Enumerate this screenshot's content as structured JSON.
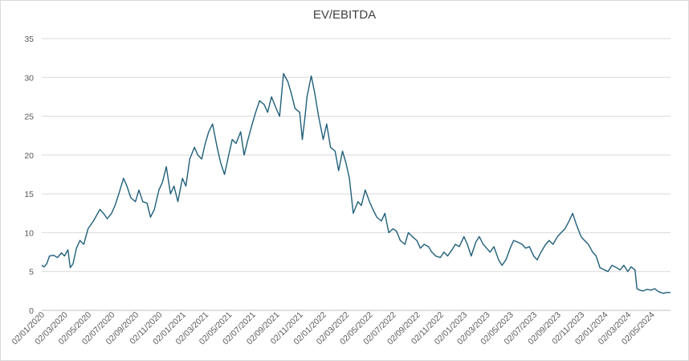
{
  "chart_data": {
    "type": "line",
    "title": "EV/EBITDA",
    "xlabel": "",
    "ylabel": "",
    "ylim": [
      0,
      35
    ],
    "y_ticks": [
      0,
      5,
      10,
      15,
      20,
      25,
      30,
      35
    ],
    "x_range": [
      "2020-01-02",
      "2024-06-20"
    ],
    "x_ticks": [
      "02/01/2020",
      "02/03/2020",
      "02/05/2020",
      "02/07/2020",
      "02/09/2020",
      "02/11/2020",
      "02/01/2021",
      "02/03/2021",
      "02/05/2021",
      "02/07/2021",
      "02/09/2021",
      "02/11/2021",
      "02/01/2022",
      "02/03/2022",
      "02/05/2022",
      "02/07/2022",
      "02/09/2022",
      "02/11/2022",
      "02/01/2023",
      "02/03/2023",
      "02/05/2023",
      "02/07/2023",
      "02/09/2023",
      "02/11/2023",
      "02/01/2024",
      "02/03/2024",
      "02/05/2024"
    ],
    "grid": "horizontal",
    "legend": "none",
    "series": [
      {
        "color": "#1f5f7a",
        "points": [
          [
            "2020-01-02",
            5.8
          ],
          [
            "2020-01-08",
            5.6
          ],
          [
            "2020-01-15",
            6.0
          ],
          [
            "2020-01-22",
            7.0
          ],
          [
            "2020-02-01",
            7.1
          ],
          [
            "2020-02-12",
            6.8
          ],
          [
            "2020-02-22",
            7.4
          ],
          [
            "2020-03-01",
            7.0
          ],
          [
            "2020-03-10",
            7.8
          ],
          [
            "2020-03-16",
            5.5
          ],
          [
            "2020-03-23",
            6.0
          ],
          [
            "2020-04-01",
            8.0
          ],
          [
            "2020-04-10",
            9.0
          ],
          [
            "2020-04-20",
            8.5
          ],
          [
            "2020-05-01",
            10.5
          ],
          [
            "2020-05-15",
            11.5
          ],
          [
            "2020-06-01",
            13.0
          ],
          [
            "2020-06-10",
            12.5
          ],
          [
            "2020-06-20",
            11.8
          ],
          [
            "2020-07-01",
            12.5
          ],
          [
            "2020-07-10",
            13.5
          ],
          [
            "2020-07-20",
            15.0
          ],
          [
            "2020-08-01",
            17.0
          ],
          [
            "2020-08-10",
            16.0
          ],
          [
            "2020-08-20",
            14.5
          ],
          [
            "2020-09-01",
            14.0
          ],
          [
            "2020-09-10",
            15.5
          ],
          [
            "2020-09-20",
            14.0
          ],
          [
            "2020-10-01",
            13.8
          ],
          [
            "2020-10-10",
            12.0
          ],
          [
            "2020-10-20",
            13.0
          ],
          [
            "2020-11-01",
            15.5
          ],
          [
            "2020-11-10",
            16.5
          ],
          [
            "2020-11-20",
            18.5
          ],
          [
            "2020-12-01",
            15.0
          ],
          [
            "2020-12-10",
            16.0
          ],
          [
            "2020-12-20",
            14.0
          ],
          [
            "2021-01-01",
            17.0
          ],
          [
            "2021-01-10",
            16.0
          ],
          [
            "2021-01-20",
            19.5
          ],
          [
            "2021-02-01",
            21.0
          ],
          [
            "2021-02-10",
            20.0
          ],
          [
            "2021-02-20",
            19.5
          ],
          [
            "2021-03-01",
            21.5
          ],
          [
            "2021-03-10",
            23.0
          ],
          [
            "2021-03-20",
            24.0
          ],
          [
            "2021-04-01",
            21.0
          ],
          [
            "2021-04-10",
            19.0
          ],
          [
            "2021-04-20",
            17.5
          ],
          [
            "2021-05-01",
            20.0
          ],
          [
            "2021-05-10",
            22.0
          ],
          [
            "2021-05-20",
            21.5
          ],
          [
            "2021-06-01",
            23.0
          ],
          [
            "2021-06-10",
            20.0
          ],
          [
            "2021-06-20",
            22.0
          ],
          [
            "2021-07-01",
            24.0
          ],
          [
            "2021-07-10",
            25.5
          ],
          [
            "2021-07-20",
            27.0
          ],
          [
            "2021-08-01",
            26.5
          ],
          [
            "2021-08-10",
            25.5
          ],
          [
            "2021-08-20",
            27.5
          ],
          [
            "2021-09-01",
            26.0
          ],
          [
            "2021-09-10",
            25.0
          ],
          [
            "2021-09-20",
            30.5
          ],
          [
            "2021-10-01",
            29.5
          ],
          [
            "2021-10-10",
            28.0
          ],
          [
            "2021-10-20",
            26.0
          ],
          [
            "2021-11-01",
            25.5
          ],
          [
            "2021-11-08",
            22.0
          ],
          [
            "2021-11-15",
            25.0
          ],
          [
            "2021-11-20",
            27.5
          ],
          [
            "2021-12-01",
            30.2
          ],
          [
            "2021-12-10",
            28.0
          ],
          [
            "2021-12-20",
            25.0
          ],
          [
            "2022-01-01",
            22.0
          ],
          [
            "2022-01-10",
            24.0
          ],
          [
            "2022-01-20",
            21.0
          ],
          [
            "2022-02-01",
            20.5
          ],
          [
            "2022-02-10",
            18.0
          ],
          [
            "2022-02-20",
            20.5
          ],
          [
            "2022-03-01",
            19.0
          ],
          [
            "2022-03-10",
            17.0
          ],
          [
            "2022-03-20",
            12.5
          ],
          [
            "2022-04-01",
            14.0
          ],
          [
            "2022-04-10",
            13.5
          ],
          [
            "2022-04-20",
            15.5
          ],
          [
            "2022-05-01",
            14.0
          ],
          [
            "2022-05-10",
            13.0
          ],
          [
            "2022-05-20",
            12.0
          ],
          [
            "2022-06-01",
            11.5
          ],
          [
            "2022-06-10",
            12.5
          ],
          [
            "2022-06-20",
            10.0
          ],
          [
            "2022-07-01",
            10.5
          ],
          [
            "2022-07-10",
            10.2
          ],
          [
            "2022-07-20",
            9.0
          ],
          [
            "2022-08-01",
            8.5
          ],
          [
            "2022-08-10",
            10.0
          ],
          [
            "2022-08-20",
            9.5
          ],
          [
            "2022-09-01",
            9.0
          ],
          [
            "2022-09-10",
            8.0
          ],
          [
            "2022-09-20",
            8.5
          ],
          [
            "2022-10-01",
            8.2
          ],
          [
            "2022-10-10",
            7.5
          ],
          [
            "2022-10-20",
            7.0
          ],
          [
            "2022-11-01",
            6.8
          ],
          [
            "2022-11-10",
            7.5
          ],
          [
            "2022-11-20",
            7.0
          ],
          [
            "2022-12-01",
            7.8
          ],
          [
            "2022-12-10",
            8.5
          ],
          [
            "2022-12-20",
            8.2
          ],
          [
            "2023-01-01",
            9.5
          ],
          [
            "2023-01-10",
            8.5
          ],
          [
            "2023-01-20",
            7.0
          ],
          [
            "2023-02-01",
            8.8
          ],
          [
            "2023-02-10",
            9.5
          ],
          [
            "2023-02-20",
            8.5
          ],
          [
            "2023-03-01",
            8.0
          ],
          [
            "2023-03-10",
            7.5
          ],
          [
            "2023-03-20",
            8.2
          ],
          [
            "2023-04-01",
            6.5
          ],
          [
            "2023-04-10",
            5.8
          ],
          [
            "2023-04-20",
            6.5
          ],
          [
            "2023-05-01",
            8.0
          ],
          [
            "2023-05-10",
            9.0
          ],
          [
            "2023-05-20",
            8.8
          ],
          [
            "2023-06-01",
            8.5
          ],
          [
            "2023-06-10",
            8.0
          ],
          [
            "2023-06-20",
            8.2
          ],
          [
            "2023-07-01",
            7.0
          ],
          [
            "2023-07-10",
            6.5
          ],
          [
            "2023-07-20",
            7.5
          ],
          [
            "2023-08-01",
            8.5
          ],
          [
            "2023-08-10",
            9.0
          ],
          [
            "2023-08-20",
            8.5
          ],
          [
            "2023-09-01",
            9.5
          ],
          [
            "2023-09-10",
            10.0
          ],
          [
            "2023-09-20",
            10.5
          ],
          [
            "2023-10-01",
            11.5
          ],
          [
            "2023-10-10",
            12.5
          ],
          [
            "2023-10-20",
            11.0
          ],
          [
            "2023-11-01",
            9.5
          ],
          [
            "2023-11-10",
            9.0
          ],
          [
            "2023-11-20",
            8.5
          ],
          [
            "2023-12-01",
            7.5
          ],
          [
            "2023-12-10",
            7.0
          ],
          [
            "2023-12-20",
            5.5
          ],
          [
            "2024-01-01",
            5.2
          ],
          [
            "2024-01-10",
            5.0
          ],
          [
            "2024-01-20",
            5.8
          ],
          [
            "2024-02-01",
            5.5
          ],
          [
            "2024-02-10",
            5.2
          ],
          [
            "2024-02-20",
            5.8
          ],
          [
            "2024-03-01",
            5.0
          ],
          [
            "2024-03-10",
            5.6
          ],
          [
            "2024-03-20",
            5.2
          ],
          [
            "2024-03-25",
            2.8
          ],
          [
            "2024-04-01",
            2.6
          ],
          [
            "2024-04-10",
            2.5
          ],
          [
            "2024-04-20",
            2.7
          ],
          [
            "2024-05-01",
            2.6
          ],
          [
            "2024-05-10",
            2.8
          ],
          [
            "2024-05-20",
            2.4
          ],
          [
            "2024-06-01",
            2.2
          ],
          [
            "2024-06-10",
            2.3
          ],
          [
            "2024-06-20",
            2.3
          ]
        ]
      }
    ]
  }
}
